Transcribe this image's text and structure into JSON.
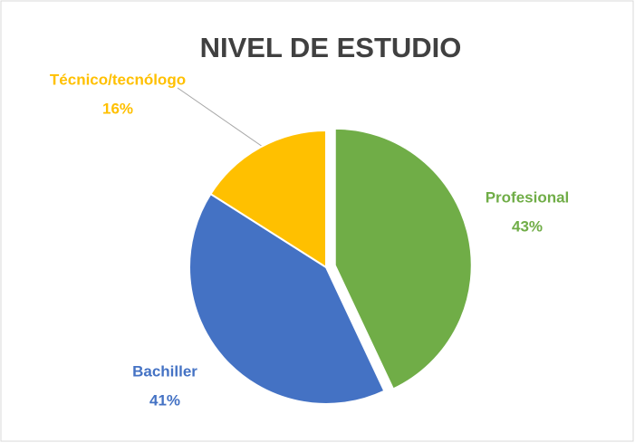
{
  "chart_data": {
    "type": "pie",
    "title": "NIVEL DE ESTUDIO",
    "categories": [
      "Profesional",
      "Bachiller",
      "Técnico/tecnólogo"
    ],
    "values": [
      43,
      41,
      16
    ],
    "value_labels": [
      "43%",
      "41%",
      "16%"
    ],
    "colors": [
      "#70ad47",
      "#4472c4",
      "#ffc000"
    ]
  }
}
